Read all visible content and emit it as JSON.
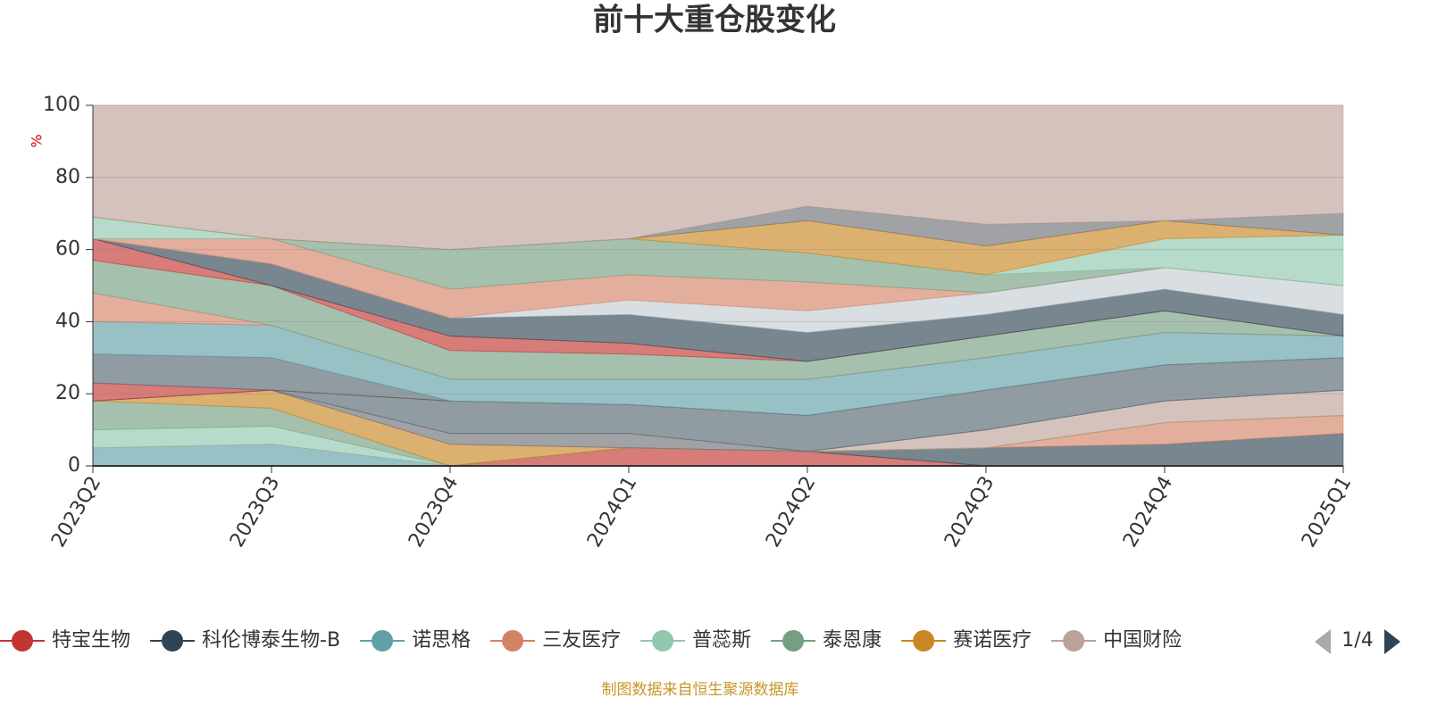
{
  "chart_data": {
    "type": "stacked_area",
    "title": "前十大重仓股变化",
    "y_label": "%",
    "categories": [
      "2023Q2",
      "2023Q3",
      "2023Q4",
      "2024Q1",
      "2024Q2",
      "2024Q3",
      "2024Q4",
      "2025Q1"
    ],
    "ylim": [
      0,
      100
    ],
    "yticks": [
      0,
      20,
      40,
      60,
      80,
      100
    ],
    "grid": true,
    "legend": "bottom",
    "legend_page": "1/4",
    "source": "制图数据来自恒生聚源数据库",
    "series": [
      {
        "name": "特宝生物",
        "color": "#c23531",
        "values": [
          0,
          0,
          0,
          5,
          4,
          0,
          0,
          0
        ]
      },
      {
        "name": "科伦博泰生物-B",
        "color": "#2f4554",
        "values": [
          0,
          0,
          0,
          0,
          0,
          5,
          6,
          9
        ]
      },
      {
        "name": "诺思格",
        "color": "#61a0a8",
        "values": [
          5,
          6,
          0,
          0,
          0,
          0,
          0,
          0
        ]
      },
      {
        "name": "三友医疗",
        "color": "#d48265",
        "values": [
          0,
          0,
          0,
          0,
          0,
          0,
          6,
          5
        ]
      },
      {
        "name": "普蕊斯",
        "color": "#91c7ae",
        "values": [
          5,
          5,
          0,
          0,
          0,
          0,
          0,
          0
        ]
      },
      {
        "name": "泰恩康",
        "color": "#749f83",
        "values": [
          8,
          5,
          0,
          0,
          0,
          0,
          0,
          0
        ]
      },
      {
        "name": "赛诺医疗",
        "color": "#ca8622",
        "values": [
          0,
          5,
          6,
          0,
          0,
          0,
          0,
          0
        ]
      },
      {
        "name": "中国财险",
        "color": "#bda29a",
        "values": [
          0,
          0,
          0,
          0,
          0,
          5,
          6,
          7
        ]
      },
      {
        "name": null,
        "color": "#6e7074",
        "values": [
          0,
          0,
          3,
          4,
          0,
          0,
          0,
          0
        ]
      },
      {
        "name": null,
        "color": "#546570",
        "values": [
          0,
          0,
          9,
          8,
          10,
          11,
          10,
          9
        ]
      },
      {
        "name": null,
        "color": "#c23531",
        "values": [
          5,
          0,
          0,
          0,
          0,
          0,
          0,
          0
        ]
      },
      {
        "name": null,
        "color": "#546570",
        "values": [
          8,
          9,
          0,
          0,
          0,
          0,
          0,
          0
        ]
      },
      {
        "name": null,
        "color": "#61a0a8",
        "values": [
          9,
          9,
          6,
          7,
          10,
          9,
          9,
          6
        ]
      },
      {
        "name": null,
        "color": "#d48265",
        "values": [
          8,
          0,
          0,
          0,
          0,
          0,
          0,
          0
        ]
      },
      {
        "name": null,
        "color": "#749f83",
        "values": [
          9,
          11,
          8,
          7,
          5,
          6,
          6,
          0
        ]
      },
      {
        "name": null,
        "color": "#c23531",
        "values": [
          6,
          0,
          4,
          3,
          0,
          0,
          0,
          0
        ]
      },
      {
        "name": null,
        "color": "#2f4554",
        "values": [
          0,
          6,
          5,
          8,
          8,
          6,
          6,
          6
        ]
      },
      {
        "name": null,
        "color": "#c4ccd3",
        "values": [
          0,
          0,
          0,
          4,
          6,
          6,
          6,
          8
        ]
      },
      {
        "name": null,
        "color": "#d48265",
        "values": [
          0,
          7,
          8,
          7,
          8,
          0,
          0,
          0
        ]
      },
      {
        "name": null,
        "color": "#749f83",
        "values": [
          0,
          0,
          11,
          10,
          8,
          5,
          0,
          0
        ]
      },
      {
        "name": null,
        "color": "#91c7ae",
        "values": [
          6,
          0,
          0,
          0,
          0,
          0,
          8,
          14
        ]
      },
      {
        "name": null,
        "color": "#ca8622",
        "values": [
          0,
          0,
          0,
          0,
          9,
          8,
          5,
          0
        ]
      },
      {
        "name": null,
        "color": "#6e7074",
        "values": [
          0,
          0,
          0,
          0,
          4,
          6,
          0,
          6
        ]
      },
      {
        "name": null,
        "color": "#bda29a",
        "values": [
          31,
          37,
          40,
          37,
          28,
          33,
          32,
          30
        ]
      }
    ]
  }
}
